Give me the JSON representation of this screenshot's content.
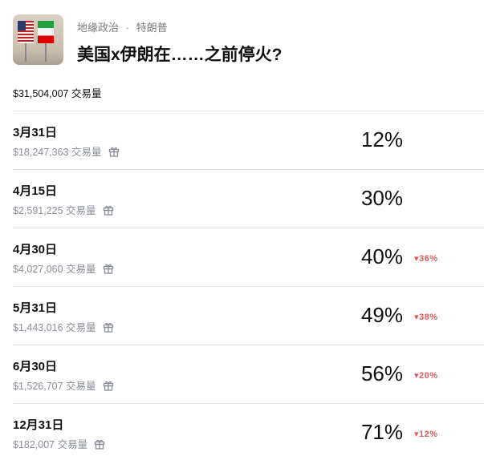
{
  "header": {
    "category": "地缘政治",
    "separator": "·",
    "tag": "特朗普",
    "title": "美国x伊朗在……之前停火?"
  },
  "total_volume": "$31,504,007 交易量",
  "colors": {
    "down": "#e05a5a"
  },
  "markets": [
    {
      "date": "3月31日",
      "volume": "$18,247,363 交易量",
      "percent": "12%",
      "change": ""
    },
    {
      "date": "4月15日",
      "volume": "$2,591,225 交易量",
      "percent": "30%",
      "change": ""
    },
    {
      "date": "4月30日",
      "volume": "$4,027,060 交易量",
      "percent": "40%",
      "change": "▾36%"
    },
    {
      "date": "5月31日",
      "volume": "$1,443,016 交易量",
      "percent": "49%",
      "change": "▾38%"
    },
    {
      "date": "6月30日",
      "volume": "$1,526,707 交易量",
      "percent": "56%",
      "change": "▾20%"
    },
    {
      "date": "12月31日",
      "volume": "$182,007 交易量",
      "percent": "71%",
      "change": "▾12%"
    }
  ]
}
